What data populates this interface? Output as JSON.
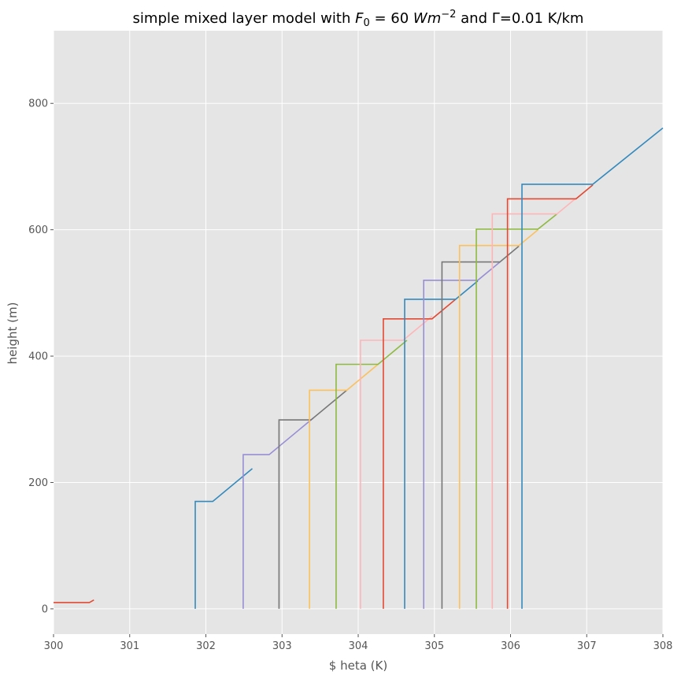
{
  "chart_data": {
    "type": "line",
    "title": {
      "prefix": "simple mixed layer model with ",
      "var": "F",
      "sub": "0",
      "eq": " = 60 ",
      "unit": "Wm",
      "sup": "−2",
      "suffix": " and Γ=0.01 K/km"
    },
    "xlabel": "$\theta (K)",
    "ylabel": "height (m)",
    "xlim": [
      300,
      308
    ],
    "ylim": [
      -40,
      915
    ],
    "xticks": [
      300,
      301,
      302,
      303,
      304,
      305,
      306,
      307,
      308
    ],
    "yticks": [
      0,
      200,
      400,
      600,
      800
    ],
    "grid": true,
    "background": "#e5e5e5",
    "colors": [
      "#e24a33",
      "#348abd",
      "#988ed5",
      "#777777",
      "#fbc15e",
      "#8eba42",
      "#ffb5b8"
    ],
    "series": [
      {
        "color": "#e24a33",
        "points": [
          [
            300,
            10
          ],
          [
            300.47,
            10
          ],
          [
            300.53,
            14
          ]
        ]
      },
      {
        "color": "#348abd",
        "points": [
          [
            301.86,
            0
          ],
          [
            301.86,
            170
          ],
          [
            302.09,
            170
          ],
          [
            302.61,
            222
          ]
        ]
      },
      {
        "color": "#988ed5",
        "points": [
          [
            302.49,
            0
          ],
          [
            302.49,
            244
          ],
          [
            302.83,
            244
          ],
          [
            303.41,
            302
          ]
        ]
      },
      {
        "color": "#777777",
        "points": [
          [
            302.96,
            0
          ],
          [
            302.96,
            299
          ],
          [
            303.38,
            299
          ],
          [
            303.85,
            346
          ]
        ]
      },
      {
        "color": "#fbc15e",
        "points": [
          [
            303.36,
            0
          ],
          [
            303.36,
            346
          ],
          [
            303.85,
            346
          ],
          [
            304.26,
            387
          ]
        ]
      },
      {
        "color": "#8eba42",
        "points": [
          [
            303.71,
            0
          ],
          [
            303.71,
            387
          ],
          [
            304.26,
            387
          ],
          [
            304.64,
            425
          ]
        ]
      },
      {
        "color": "#ffb5b8",
        "points": [
          [
            304.03,
            0
          ],
          [
            304.03,
            425
          ],
          [
            304.59,
            425
          ],
          [
            304.97,
            463
          ]
        ]
      },
      {
        "color": "#e24a33",
        "points": [
          [
            304.33,
            0
          ],
          [
            304.33,
            459
          ],
          [
            304.97,
            459
          ],
          [
            305.28,
            490
          ]
        ]
      },
      {
        "color": "#348abd",
        "points": [
          [
            304.61,
            0
          ],
          [
            304.61,
            490
          ],
          [
            305.28,
            490
          ],
          [
            305.57,
            519
          ]
        ]
      },
      {
        "color": "#988ed5",
        "points": [
          [
            304.86,
            0
          ],
          [
            304.86,
            520
          ],
          [
            305.57,
            520
          ],
          [
            305.86,
            549
          ]
        ]
      },
      {
        "color": "#777777",
        "points": [
          [
            305.1,
            0
          ],
          [
            305.1,
            549
          ],
          [
            305.86,
            549
          ],
          [
            306.11,
            574
          ]
        ]
      },
      {
        "color": "#fbc15e",
        "points": [
          [
            305.33,
            0
          ],
          [
            305.33,
            575
          ],
          [
            306.11,
            575
          ],
          [
            306.36,
            600
          ]
        ]
      },
      {
        "color": "#8eba42",
        "points": [
          [
            305.55,
            0
          ],
          [
            305.55,
            601
          ],
          [
            306.36,
            601
          ],
          [
            306.61,
            625
          ]
        ]
      },
      {
        "color": "#ffb5b8",
        "points": [
          [
            305.76,
            0
          ],
          [
            305.76,
            625
          ],
          [
            306.61,
            625
          ],
          [
            306.86,
            650
          ]
        ]
      },
      {
        "color": "#e24a33",
        "points": [
          [
            305.96,
            0
          ],
          [
            305.96,
            649
          ],
          [
            306.86,
            649
          ],
          [
            307.08,
            671
          ]
        ]
      },
      {
        "color": "#348abd",
        "points": [
          [
            306.15,
            0
          ],
          [
            306.15,
            672
          ],
          [
            307.08,
            672
          ],
          [
            308.0,
            761
          ]
        ]
      }
    ]
  }
}
